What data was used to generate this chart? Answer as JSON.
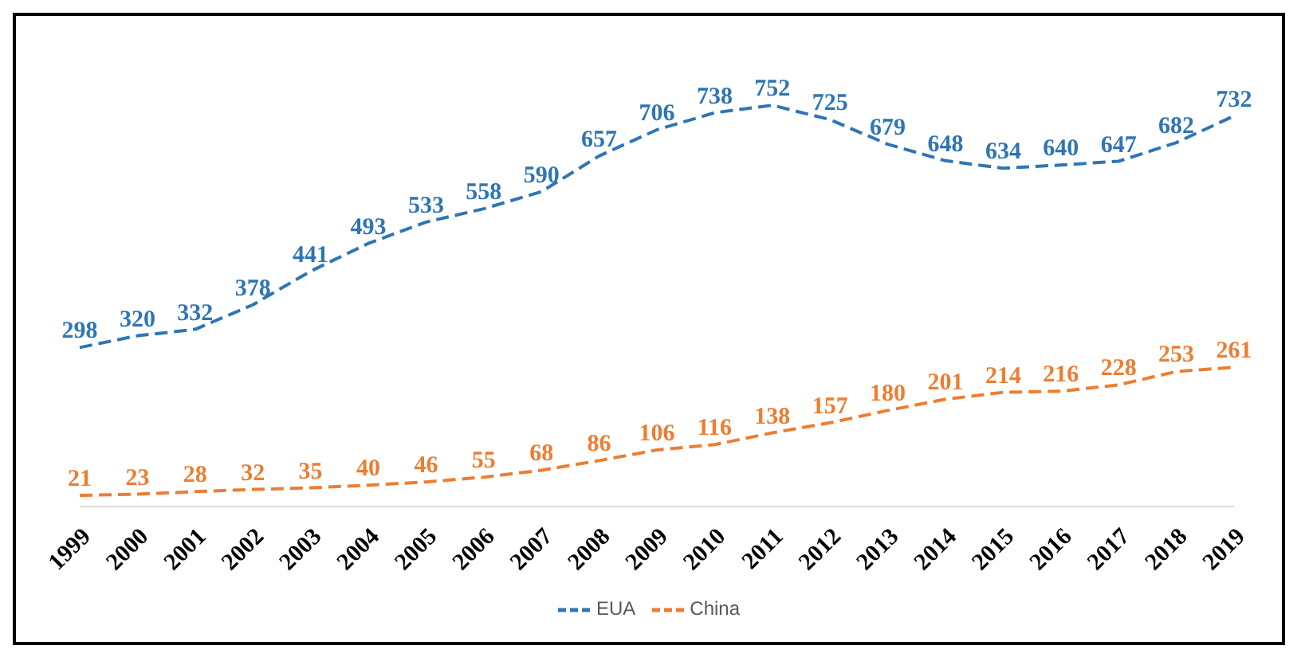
{
  "chart_data": {
    "type": "line",
    "categories": [
      "1999",
      "2000",
      "2001",
      "2002",
      "2003",
      "2004",
      "2005",
      "2006",
      "2007",
      "2008",
      "2009",
      "2010",
      "2011",
      "2012",
      "2013",
      "2014",
      "2015",
      "2016",
      "2017",
      "2018",
      "2019"
    ],
    "series": [
      {
        "name": "EUA",
        "color": "#2e75b6",
        "values": [
          298,
          320,
          332,
          378,
          441,
          493,
          533,
          558,
          590,
          657,
          706,
          738,
          752,
          725,
          679,
          648,
          634,
          640,
          647,
          682,
          732
        ]
      },
      {
        "name": "China",
        "color": "#ed7d31",
        "values": [
          21,
          23,
          28,
          32,
          35,
          40,
          46,
          55,
          68,
          86,
          106,
          116,
          138,
          157,
          180,
          201,
          214,
          216,
          228,
          253,
          261
        ]
      }
    ],
    "data_labels": true,
    "grid": false,
    "legend": "bottom",
    "line_style": "dashed",
    "tick_labels": "x"
  }
}
